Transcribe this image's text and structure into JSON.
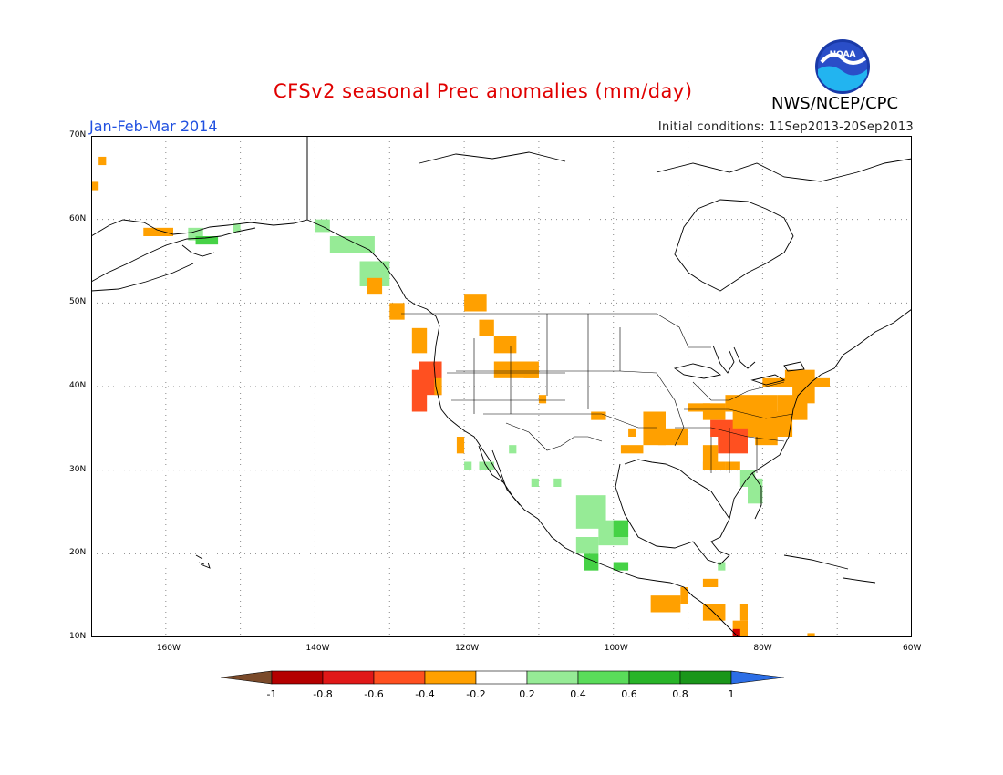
{
  "header": {
    "title": "CFSv2 seasonal Prec anomalies (mm/day)",
    "period": "Jan-Feb-Mar 2014",
    "initial_conditions": "Initial conditions: 11Sep2013-20Sep2013",
    "org": "NWS/NCEP/CPC",
    "logo_text": "NOAA"
  },
  "map": {
    "lat_labels": [
      "70N",
      "60N",
      "50N",
      "40N",
      "30N",
      "20N",
      "10N"
    ],
    "lon_labels": [
      "160W",
      "140W",
      "120W",
      "100W",
      "80W",
      "60W"
    ],
    "lon_range": [
      -170,
      -60
    ],
    "lat_range": [
      10,
      70
    ],
    "colors": {
      "dry_strong": "#d00000",
      "dry_medium": "#ff5020",
      "dry_weak": "#ffa000",
      "wet_weak": "#96eb96",
      "wet_medium": "#46d246",
      "wet_strong": "#16a016",
      "coast": "#000000",
      "grid": "#888888"
    }
  },
  "colorbar": {
    "labels": [
      "-1",
      "-0.8",
      "-0.6",
      "-0.4",
      "-0.2",
      "0.2",
      "0.4",
      "0.6",
      "0.8",
      "1"
    ],
    "colors": [
      "#7a4a2a",
      "#b40000",
      "#e01818",
      "#ff5020",
      "#ffa000",
      "#ffffff",
      "#96eb96",
      "#5adc5a",
      "#28b428",
      "#1a961a",
      "#2c6ee6"
    ]
  }
}
